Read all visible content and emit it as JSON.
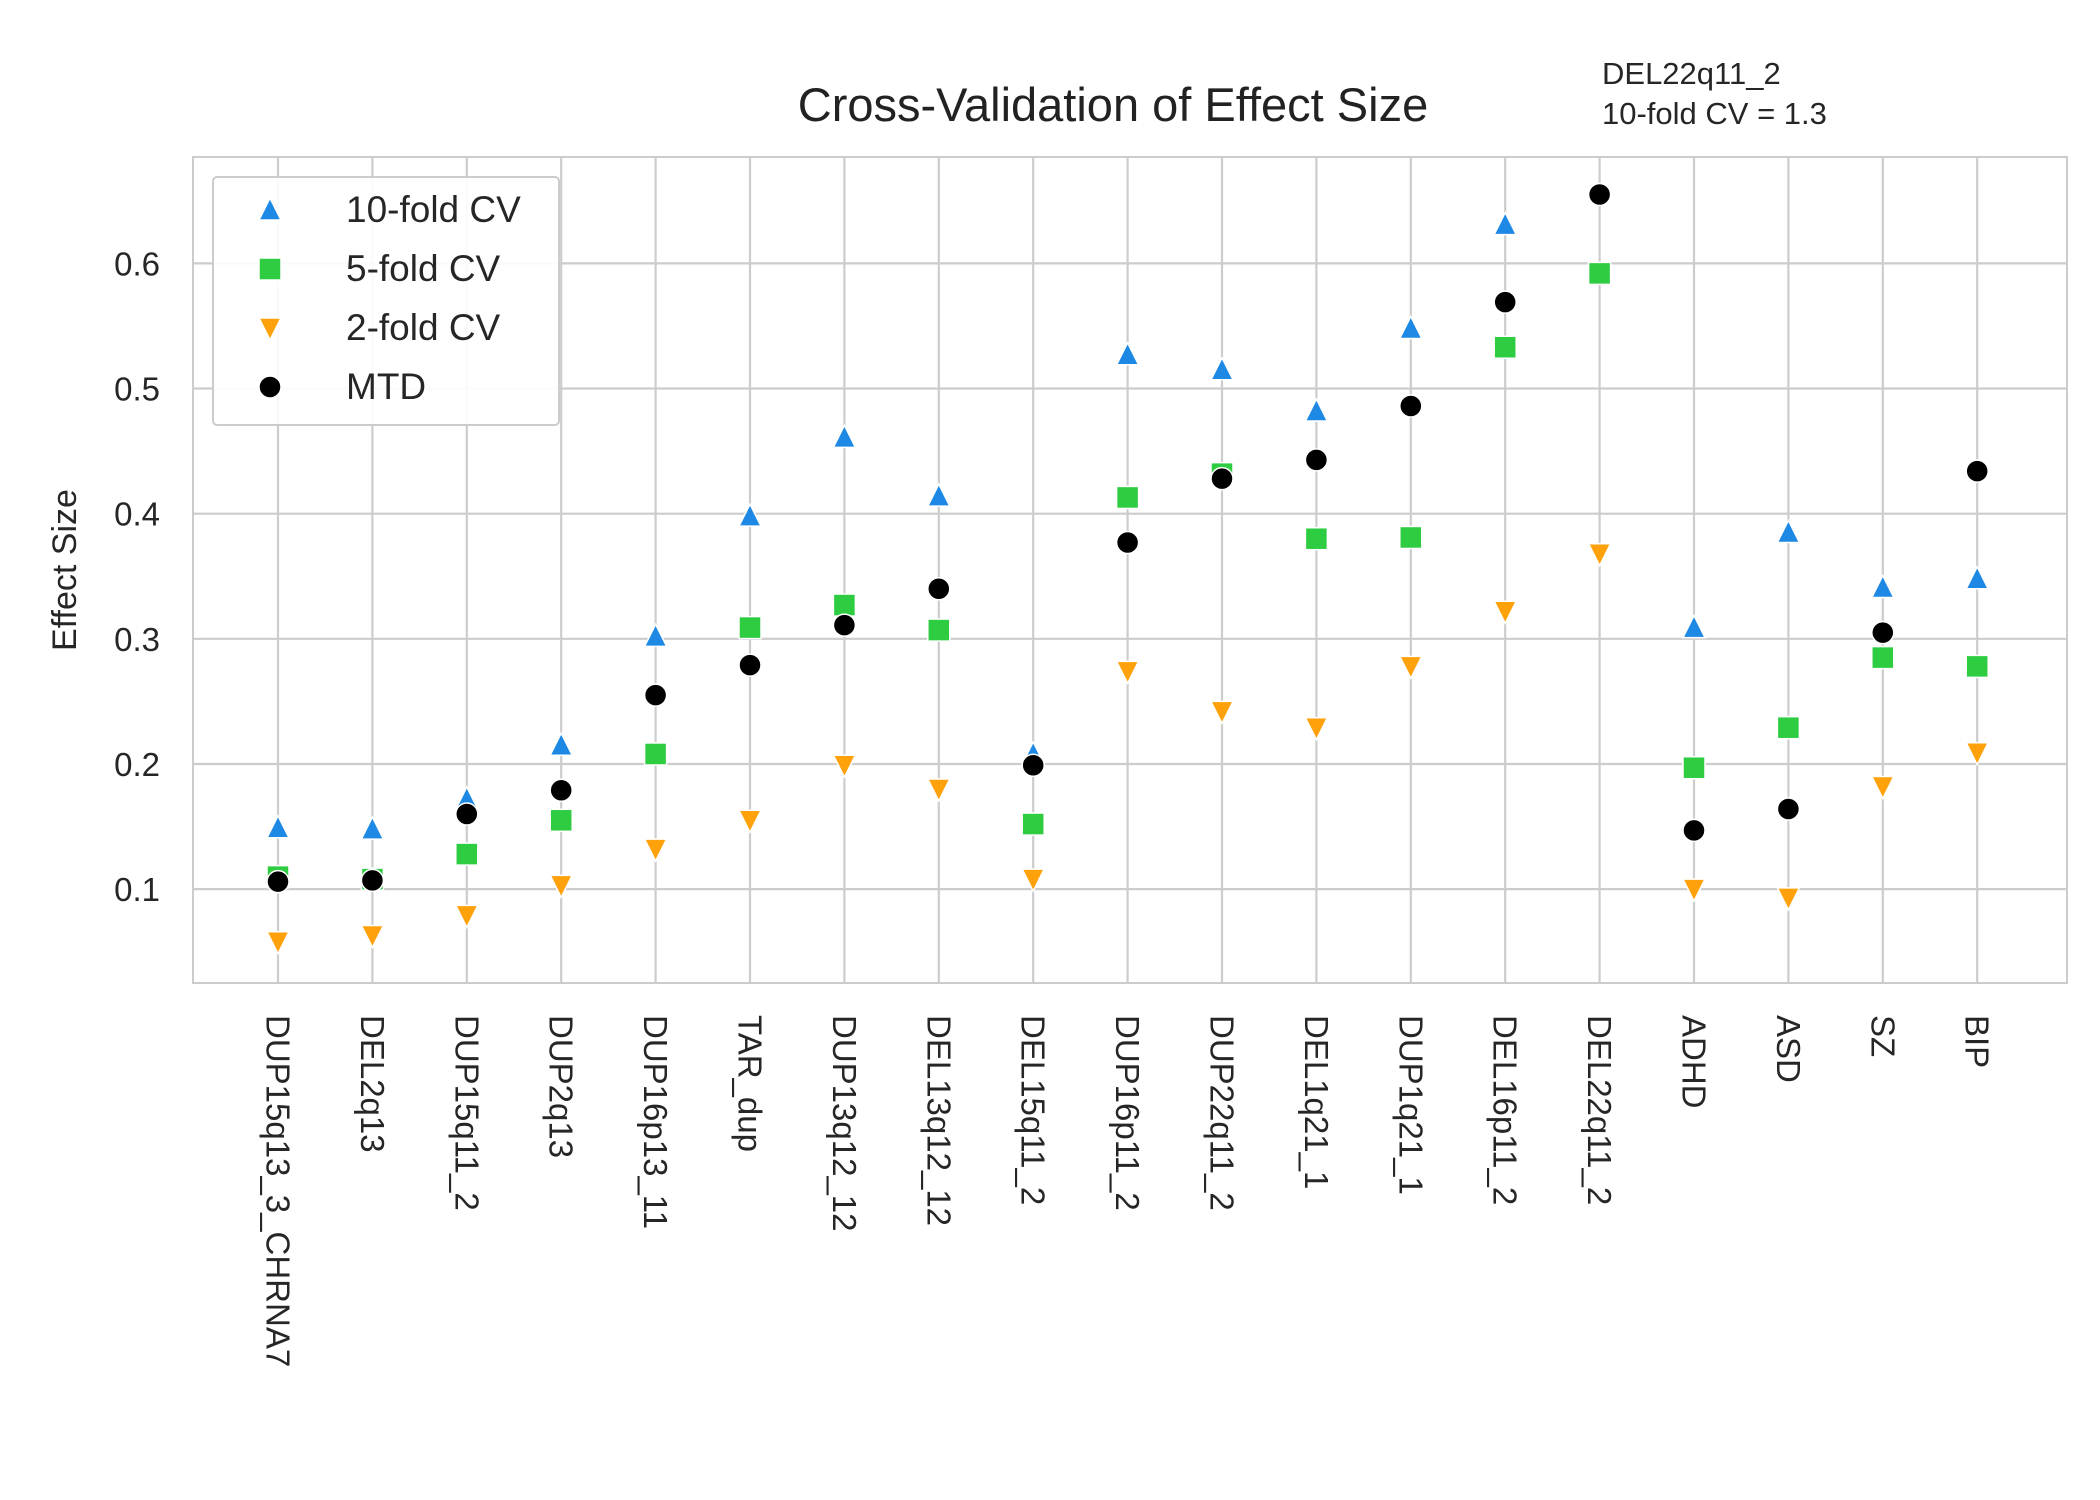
{
  "chart_data": {
    "type": "scatter",
    "title": "Cross-Validation of Effect Size",
    "annotation": [
      "DEL22q11_2",
      "10-fold CV = 1.3"
    ],
    "xlabel": "",
    "ylabel": "Effect Size",
    "ylim": [
      0.025,
      0.685
    ],
    "yticks": [
      0.1,
      0.2,
      0.3,
      0.4,
      0.5,
      0.6
    ],
    "ytick_labels": [
      "0.1",
      "0.2",
      "0.3",
      "0.4",
      "0.5",
      "0.6"
    ],
    "grid": true,
    "legend_position": "top-left",
    "categories": [
      "DUP15q13_3_CHRNA7",
      "DEL2q13",
      "DUP15q11_2",
      "DUP2q13",
      "DUP16p13_11",
      "TAR_dup",
      "DUP13q12_12",
      "DEL13q12_12",
      "DEL15q11_2",
      "DUP16p11_2",
      "DUP22q11_2",
      "DEL1q21_1",
      "DUP1q21_1",
      "DEL16p11_2",
      "DEL22q11_2",
      "ADHD",
      "ASD",
      "SZ",
      "BIP"
    ],
    "series": [
      {
        "name": "10-fold CV",
        "marker": "triangle-up",
        "color": "#1e88e5",
        "values": [
          0.149,
          0.148,
          0.172,
          0.215,
          0.302,
          0.398,
          0.461,
          0.414,
          0.208,
          0.527,
          0.515,
          0.482,
          0.548,
          0.631,
          null,
          0.309,
          0.385,
          0.341,
          0.348
        ]
      },
      {
        "name": "5-fold CV",
        "marker": "square",
        "color": "#2ecc40",
        "values": [
          0.11,
          0.108,
          0.128,
          0.155,
          0.208,
          0.309,
          0.327,
          0.307,
          0.152,
          0.413,
          0.432,
          0.38,
          0.381,
          0.533,
          0.592,
          0.197,
          0.229,
          0.285,
          0.278
        ]
      },
      {
        "name": "2-fold CV",
        "marker": "triangle-down",
        "color": "#ffa10a",
        "values": [
          0.058,
          0.063,
          0.079,
          0.103,
          0.132,
          0.155,
          0.199,
          0.18,
          0.108,
          0.274,
          0.242,
          0.229,
          0.278,
          0.322,
          0.368,
          0.1,
          0.093,
          0.182,
          0.209
        ]
      },
      {
        "name": "MTD",
        "marker": "circle",
        "color": "#000000",
        "values": [
          0.106,
          0.107,
          0.16,
          0.179,
          0.255,
          0.279,
          0.311,
          0.34,
          0.199,
          0.377,
          0.428,
          0.443,
          0.486,
          0.569,
          0.655,
          0.147,
          0.164,
          0.305,
          0.434
        ]
      }
    ]
  }
}
